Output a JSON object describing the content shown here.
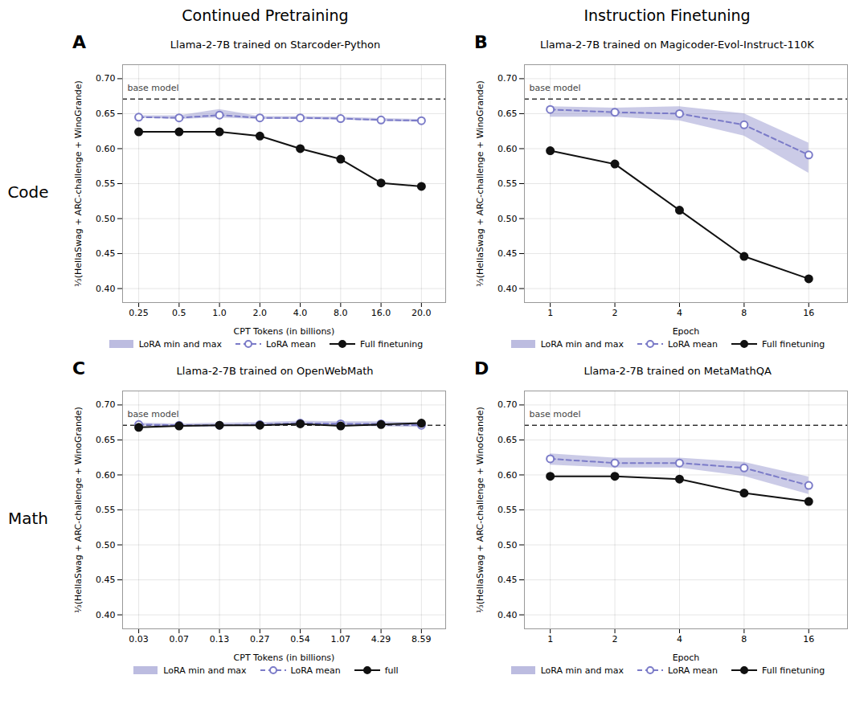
{
  "chart_data": [
    {
      "type": "line",
      "title": "Llama-2-7B trained on Starcoder-Python",
      "x_label": "CPT Tokens (in billions)",
      "y_label": "⅓(HellaSwag + ARC-challenge + WinoGrande)",
      "categories": [
        "0.25",
        "0.5",
        "1.0",
        "2.0",
        "4.0",
        "8.0",
        "16.0",
        "20.0"
      ],
      "series": [
        {
          "name": "LoRA min and max",
          "type": "band",
          "color": "#9898d0",
          "low": [
            0.644,
            0.642,
            0.644,
            0.642,
            0.642,
            0.641,
            0.639,
            0.638
          ],
          "high": [
            0.647,
            0.647,
            0.656,
            0.646,
            0.646,
            0.645,
            0.643,
            0.642
          ]
        },
        {
          "name": "LoRA mean",
          "type": "line",
          "color": "#7b7bc8",
          "line_style": "dashed",
          "marker": "open_circle",
          "values": [
            0.645,
            0.644,
            0.648,
            0.644,
            0.644,
            0.643,
            0.641,
            0.64
          ]
        },
        {
          "name": "Full finetuning",
          "type": "line",
          "color": "#111111",
          "line_style": "solid",
          "marker": "circle",
          "values": [
            0.624,
            0.624,
            0.624,
            0.618,
            0.6,
            0.585,
            0.551,
            0.546
          ]
        }
      ],
      "annotations": [
        {
          "text": "A"
        },
        {
          "text": "base model",
          "y": 0.671,
          "line_style": "dashed"
        }
      ],
      "ylim": [
        0.38,
        0.72
      ],
      "yticks": [
        {
          "value": 0.4,
          "label": "0.40"
        },
        0.45,
        {
          "value": 0.5,
          "label": "0.50"
        },
        0.55,
        {
          "value": 0.6,
          "label": "0.60"
        },
        0.65,
        {
          "value": 0.7,
          "label": "0.70"
        }
      ],
      "grid": true,
      "legend": "bottom"
    },
    {
      "type": "line",
      "title": "Llama-2-7B trained on Magicoder-Evol-Instruct-110K",
      "x_label": "Epoch",
      "y_label": "⅓(HellaSwag + ARC-challenge + WinoGrande)",
      "categories": [
        "1",
        "2",
        "4",
        "8",
        "16"
      ],
      "series": [
        {
          "name": "LoRA min and max",
          "type": "band",
          "color": "#9898d0",
          "low": [
            0.645,
            0.645,
            0.64,
            0.618,
            0.565
          ],
          "high": [
            0.66,
            0.658,
            0.66,
            0.65,
            0.608
          ]
        },
        {
          "name": "LoRA mean",
          "type": "line",
          "color": "#7b7bc8",
          "line_style": "dashed",
          "marker": "open_circle",
          "values": [
            0.656,
            0.652,
            0.65,
            0.634,
            0.591
          ]
        },
        {
          "name": "Full finetuning",
          "type": "line",
          "color": "#111111",
          "line_style": "solid",
          "marker": "circle",
          "values": [
            0.597,
            0.578,
            0.512,
            0.446,
            0.414
          ]
        }
      ],
      "annotations": [
        {
          "text": "B"
        },
        {
          "text": "base model",
          "y": 0.671,
          "line_style": "dashed"
        }
      ],
      "ylim": [
        0.38,
        0.72
      ],
      "yticks": [
        {
          "value": 0.4,
          "label": "0.40"
        },
        0.45,
        {
          "value": 0.5,
          "label": "0.50"
        },
        0.55,
        {
          "value": 0.6,
          "label": "0.60"
        },
        0.65,
        {
          "value": 0.7,
          "label": "0.70"
        }
      ],
      "grid": true,
      "legend": "bottom"
    },
    {
      "type": "line",
      "title": "Llama-2-7B trained on OpenWebMath",
      "x_label": "CPT Tokens (in billions)",
      "y_label": "⅓(HellaSwag + ARC-challenge + WinoGrande)",
      "categories": [
        "0.03",
        "0.07",
        "0.13",
        "0.27",
        "0.54",
        "1.07",
        "4.29",
        "8.59"
      ],
      "series": [
        {
          "name": "LoRA min and max",
          "type": "band",
          "color": "#9898d0",
          "low": [
            0.67,
            0.669,
            0.669,
            0.67,
            0.671,
            0.67,
            0.669,
            0.668
          ],
          "high": [
            0.674,
            0.673,
            0.674,
            0.675,
            0.677,
            0.676,
            0.676,
            0.674
          ]
        },
        {
          "name": "LoRA mean",
          "type": "line",
          "color": "#7b7bc8",
          "line_style": "dashed",
          "marker": "open_circle",
          "values": [
            0.672,
            0.671,
            0.671,
            0.672,
            0.674,
            0.673,
            0.673,
            0.671
          ]
        },
        {
          "name": "full",
          "type": "line",
          "color": "#111111",
          "line_style": "solid",
          "marker": "circle",
          "values": [
            0.668,
            0.67,
            0.671,
            0.671,
            0.673,
            0.67,
            0.672,
            0.674
          ]
        }
      ],
      "annotations": [
        {
          "text": "C"
        },
        {
          "text": "base model",
          "y": 0.671,
          "line_style": "dashed"
        }
      ],
      "ylim": [
        0.38,
        0.72
      ],
      "yticks": [
        {
          "value": 0.4,
          "label": "0.40"
        },
        0.45,
        {
          "value": 0.5,
          "label": "0.50"
        },
        0.55,
        {
          "value": 0.6,
          "label": "0.60"
        },
        0.65,
        {
          "value": 0.7,
          "label": "0.70"
        }
      ],
      "grid": true,
      "legend": "bottom"
    },
    {
      "type": "line",
      "title": "Llama-2-7B trained on MetaMathQA",
      "x_label": "Epoch",
      "y_label": "⅓(HellaSwag + ARC-challenge + WinoGrande)",
      "categories": [
        "1",
        "2",
        "4",
        "8",
        "16"
      ],
      "series": [
        {
          "name": "LoRA min and max",
          "type": "band",
          "color": "#9898d0",
          "low": [
            0.614,
            0.61,
            0.61,
            0.598,
            0.572
          ],
          "high": [
            0.63,
            0.624,
            0.624,
            0.618,
            0.597
          ]
        },
        {
          "name": "LoRA mean",
          "type": "line",
          "color": "#7b7bc8",
          "line_style": "dashed",
          "marker": "open_circle",
          "values": [
            0.623,
            0.617,
            0.617,
            0.61,
            0.585
          ]
        },
        {
          "name": "Full finetuning",
          "type": "line",
          "color": "#111111",
          "line_style": "solid",
          "marker": "circle",
          "values": [
            0.598,
            0.598,
            0.594,
            0.574,
            0.562
          ]
        }
      ],
      "annotations": [
        {
          "text": "D"
        },
        {
          "text": "base model",
          "y": 0.671,
          "line_style": "dashed"
        }
      ],
      "ylim": [
        0.38,
        0.72
      ],
      "yticks": [
        {
          "value": 0.4,
          "label": "0.40"
        },
        0.45,
        {
          "value": 0.5,
          "label": "0.50"
        },
        0.55,
        {
          "value": 0.6,
          "label": "0.60"
        },
        0.65,
        {
          "value": 0.7,
          "label": "0.70"
        }
      ],
      "grid": true,
      "legend": "bottom"
    }
  ],
  "annotations": {
    "columns": [
      "Continued Pretraining",
      "Instruction Finetuning"
    ],
    "rows": [
      "Code",
      "Math"
    ]
  }
}
